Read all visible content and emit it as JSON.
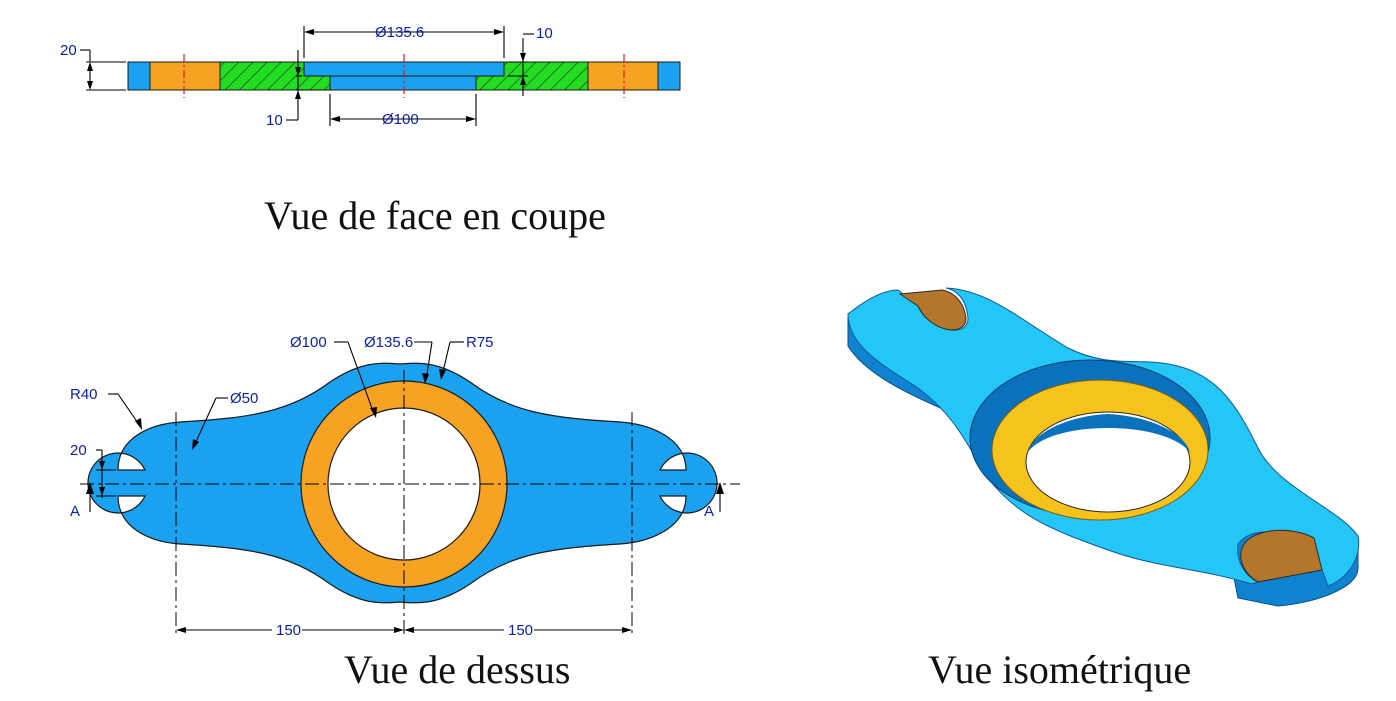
{
  "captions": {
    "front": "Vue de face en coupe",
    "top": "Vue de dessus",
    "iso": "Vue isométrique"
  },
  "front_dims": {
    "d135": "Ø135.6",
    "d100": "Ø100",
    "h20": "20",
    "t10_top": "10",
    "t10_bottom": "10"
  },
  "top_dims": {
    "d100": "Ø100",
    "d135": "Ø135.6",
    "r75": "R75",
    "r40": "R40",
    "d50": "Ø50",
    "w20": "20",
    "sec_left": "A",
    "sec_right": "A",
    "spacing_left": "150",
    "spacing_right": "150"
  },
  "colors": {
    "body_blue": "#1aa2f0",
    "ring_orange": "#f6a223",
    "hatch_green": "#22dd22",
    "iso_top": "#24c6f5",
    "iso_side": "#0f82d0",
    "iso_ring": "#f6c21c",
    "dim_text": "#0b1fa8"
  }
}
